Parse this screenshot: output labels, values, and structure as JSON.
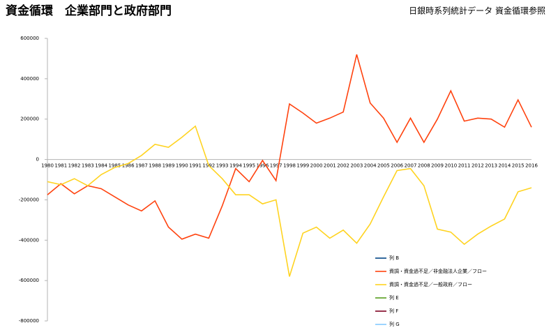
{
  "chart_data": {
    "type": "line",
    "title": "資金循環　企業部門と政府部門",
    "subtitle": "日銀時系列統計データ 資金循環参照",
    "categories": [
      "1980",
      "1981",
      "1982",
      "1983",
      "1984",
      "1985",
      "1986",
      "1987",
      "1988",
      "1989",
      "1990",
      "1991",
      "1992",
      "1993",
      "1994",
      "1995",
      "1996",
      "1997",
      "1998",
      "1999",
      "2000",
      "2001",
      "2002",
      "2003",
      "2004",
      "2005",
      "2006",
      "2007",
      "2008",
      "2009",
      "2010",
      "2011",
      "2012",
      "2013",
      "2014",
      "2015",
      "2016"
    ],
    "series": [
      {
        "name": "列 B",
        "color": "#004586",
        "values": [
          null,
          null,
          null,
          null,
          null,
          null,
          null,
          null,
          null,
          null,
          null,
          null,
          null,
          null,
          null,
          null,
          null,
          null,
          null,
          null,
          null,
          null,
          null,
          null,
          null,
          null,
          null,
          null,
          null,
          null,
          null,
          null,
          null,
          null,
          null,
          null,
          null
        ]
      },
      {
        "name": "資調・資金過不足／非金融法人企業／フロー",
        "color": "#ff420e",
        "values": [
          -175000,
          -120000,
          -170000,
          -130000,
          -145000,
          -185000,
          -225000,
          -255000,
          -205000,
          -335000,
          -395000,
          -370000,
          -390000,
          -230000,
          -45000,
          -110000,
          -5000,
          -105000,
          275000,
          230000,
          180000,
          205000,
          235000,
          520000,
          280000,
          205000,
          85000,
          205000,
          85000,
          200000,
          340000,
          190000,
          205000,
          200000,
          160000,
          295000,
          160000
        ]
      },
      {
        "name": "資調・資金過不足／一般政府／フロー",
        "color": "#ffd320",
        "values": [
          -110000,
          -125000,
          -95000,
          -130000,
          -75000,
          -40000,
          -20000,
          20000,
          75000,
          60000,
          110000,
          165000,
          -30000,
          -95000,
          -175000,
          -175000,
          -220000,
          -200000,
          -580000,
          -365000,
          -335000,
          -390000,
          -350000,
          -415000,
          -320000,
          -185000,
          -55000,
          -45000,
          -130000,
          -345000,
          -360000,
          -420000,
          -370000,
          -330000,
          -295000,
          -160000,
          -140000
        ]
      },
      {
        "name": "列 E",
        "color": "#579d1c",
        "values": [
          null,
          null,
          null,
          null,
          null,
          null,
          null,
          null,
          null,
          null,
          null,
          null,
          null,
          null,
          null,
          null,
          null,
          null,
          null,
          null,
          null,
          null,
          null,
          null,
          null,
          null,
          null,
          null,
          null,
          null,
          null,
          null,
          null,
          null,
          null,
          null,
          null
        ]
      },
      {
        "name": "列 F",
        "color": "#7e0021",
        "values": [
          null,
          null,
          null,
          null,
          null,
          null,
          null,
          null,
          null,
          null,
          null,
          null,
          null,
          null,
          null,
          null,
          null,
          null,
          null,
          null,
          null,
          null,
          null,
          null,
          null,
          null,
          null,
          null,
          null,
          null,
          null,
          null,
          null,
          null,
          null,
          null,
          null
        ]
      },
      {
        "name": "列 G",
        "color": "#83caff",
        "values": [
          null,
          null,
          null,
          null,
          null,
          null,
          null,
          null,
          null,
          null,
          null,
          null,
          null,
          null,
          null,
          null,
          null,
          null,
          null,
          null,
          null,
          null,
          null,
          null,
          null,
          null,
          null,
          null,
          null,
          null,
          null,
          null,
          null,
          null,
          null,
          null,
          null
        ]
      }
    ],
    "ylim": [
      -800000,
      600000
    ],
    "yticks": [
      -800000,
      -600000,
      -400000,
      -200000,
      0,
      200000,
      400000,
      600000
    ],
    "grid": false,
    "legend": "lower right"
  }
}
